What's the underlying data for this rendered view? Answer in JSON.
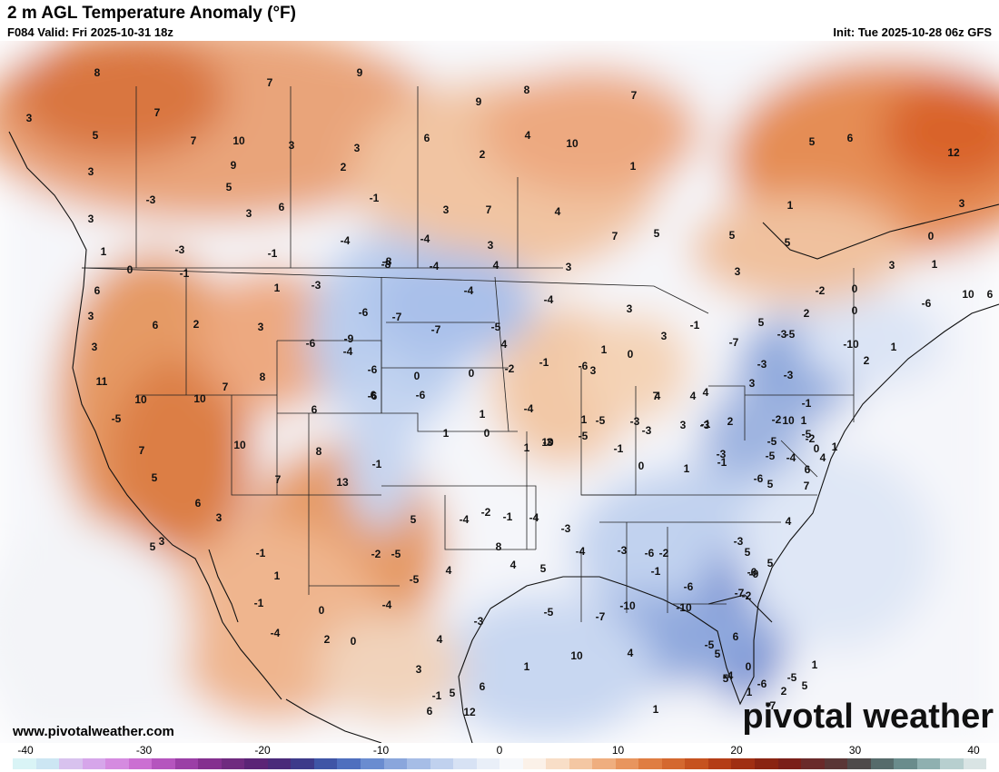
{
  "header": {
    "title": "2 m AGL Temperature Anomaly (°F)",
    "valid": "F084 Valid: Fri 2025-10-31 18z",
    "init": "Init: Tue 2025-10-28 06z GFS"
  },
  "footer": {
    "website": "www.pivotalweather.com",
    "brand": "pivotal weather"
  },
  "colorbar": {
    "ticks": [
      "-40",
      "-30",
      "-20",
      "-10",
      "0",
      "10",
      "20",
      "30",
      "40"
    ],
    "colors": [
      "#d9f4f6",
      "#cce6f3",
      "#d8c2ee",
      "#d6a6ea",
      "#d58be0",
      "#cb6fd2",
      "#b555be",
      "#9b3fa6",
      "#84308f",
      "#6f2a7f",
      "#5b2476",
      "#4a2a7a",
      "#3d3a8a",
      "#3f55a6",
      "#4f6fbe",
      "#6a8cd0",
      "#8aa6dc",
      "#a6bde6",
      "#c0d1ee",
      "#d7e2f4",
      "#e9eff8",
      "#f6f8fb",
      "#fbf1e8",
      "#f8dec7",
      "#f4c7a3",
      "#efae7f",
      "#e8955e",
      "#df7d42",
      "#d4682f",
      "#c6521f",
      "#b43d16",
      "#a02f13",
      "#8a2412",
      "#7a1f19",
      "#6a2a2a",
      "#5a3636",
      "#4e4a4a",
      "#566b6b",
      "#6a8c8c",
      "#8fb0b0",
      "#b7cfcf",
      "#d9e4e4"
    ]
  },
  "map_labels": [
    "8",
    "7",
    "9",
    "8",
    "7",
    "9",
    "3",
    "7",
    "7",
    "10",
    "3",
    "3",
    "6",
    "4",
    "5",
    "10",
    "12",
    "5",
    "9",
    "3",
    "2",
    "1",
    "2",
    "6",
    "-3",
    "5",
    "3",
    "6",
    "-1",
    "3",
    "7",
    "4",
    "3",
    "1",
    "3",
    "5",
    "0",
    "-3",
    "-1",
    "-4",
    "-4",
    "3",
    "7",
    "5",
    "1",
    "5",
    "-1",
    "1",
    "3",
    "-8",
    "-4",
    "4",
    "3",
    "0",
    "6",
    "-3",
    "-4",
    "3",
    "-2",
    "0",
    "10",
    "3",
    "6",
    "2",
    "-6",
    "-7",
    "-4",
    "3",
    "-6",
    "-7",
    "0",
    "1",
    "3",
    "-1",
    "5",
    "3",
    "-3",
    "-6",
    "-9",
    "-5",
    "2",
    "1",
    "-7",
    "-5",
    "4",
    "-3",
    "-6",
    "-10",
    "2",
    "11",
    "10",
    "10",
    "8",
    "6",
    "3",
    "-4",
    "-6",
    "0",
    "-2",
    "-1",
    "1",
    "6",
    "3",
    "0",
    "7",
    "-6",
    "-8",
    "6",
    "4",
    "4",
    "1",
    "-6",
    "4",
    "0",
    "-4",
    "1",
    "3",
    "-1",
    "2",
    "-3",
    "-5",
    "7",
    "3",
    "-3",
    "-1",
    "-3",
    "-3",
    "-5",
    "-5",
    "-2",
    "1",
    "10",
    "10",
    "-3",
    "0",
    "0",
    "1",
    "-1",
    "-5",
    "-2",
    "1",
    "7",
    "10",
    "8",
    "4",
    "0",
    "1",
    "-1",
    "1",
    "-1",
    "-5",
    "-5",
    "-4",
    "6",
    "5",
    "7",
    "13",
    "6",
    "3",
    "5",
    "-4",
    "-2",
    "-1",
    "-4",
    "-3",
    "-3",
    "-6",
    "5",
    "7",
    "4",
    "5",
    "3",
    "-1",
    "1",
    "-2",
    "-5",
    "-5",
    "4",
    "8",
    "4",
    "5",
    "-4",
    "-3",
    "-6",
    "-2",
    "-1",
    "-3",
    "-6",
    "-6",
    "5",
    "5",
    "-7",
    "-2",
    "-9",
    "-5",
    "-7",
    "-10",
    "-10",
    "6",
    "5",
    "0",
    "-4",
    "-5",
    "-6",
    "1",
    "10",
    "4",
    "1",
    "1",
    "-7",
    "5",
    "2",
    "-5",
    "1",
    "5",
    "-1",
    "-4",
    "0",
    "2",
    "0",
    "3",
    "4",
    "-4",
    "-3",
    "6",
    "12",
    "5",
    "-1",
    "6"
  ]
}
